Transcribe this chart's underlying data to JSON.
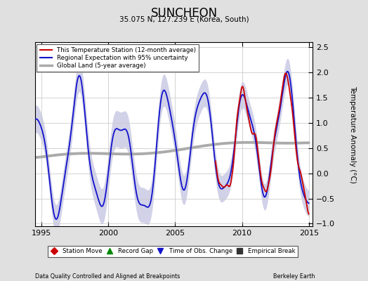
{
  "title": "SUNCHEON",
  "subtitle": "35.075 N, 127.239 E (Korea, South)",
  "ylabel": "Temperature Anomaly (°C)",
  "xlabel_left": "Data Quality Controlled and Aligned at Breakpoints",
  "xlabel_right": "Berkeley Earth",
  "xlim": [
    1994.5,
    2015.3
  ],
  "ylim": [
    -1.05,
    2.6
  ],
  "yticks": [
    -1,
    -0.5,
    0,
    0.5,
    1,
    1.5,
    2,
    2.5
  ],
  "xticks": [
    1995,
    2000,
    2005,
    2010,
    2015
  ],
  "background_color": "#e0e0e0",
  "plot_bg_color": "#ffffff",
  "station_color": "#cc0000",
  "regional_color": "#1111cc",
  "regional_fill_color": "#9999cc",
  "global_color": "#aaaaaa",
  "grid_color": "#cccccc"
}
